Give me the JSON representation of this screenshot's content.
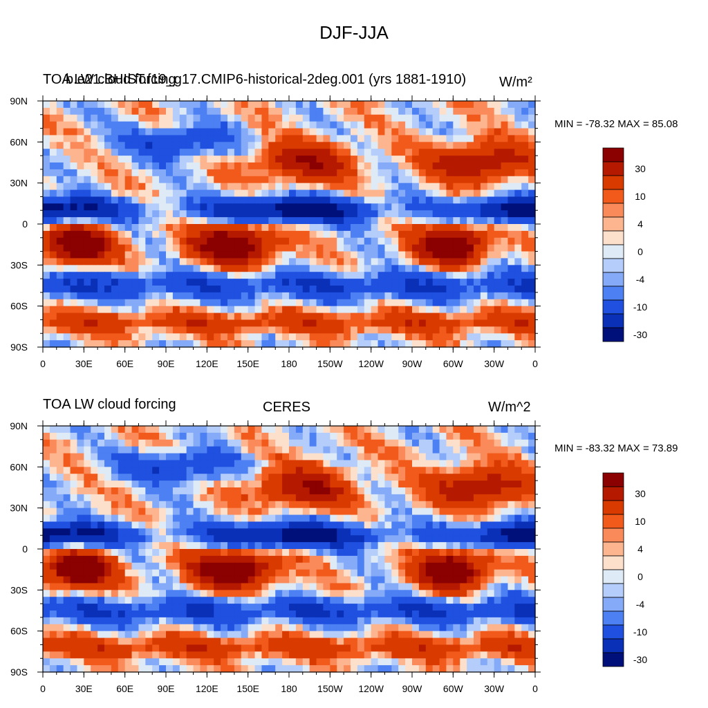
{
  "main_title": "DJF-JJA",
  "chart_data": [
    {
      "type": "heatmap",
      "left_title": "TOA LW cloud forcing",
      "center_title": "b.e21.BHIST.f19_g17.CMIP6-historical-2deg.001 (yrs 1881-1910)",
      "units": "W/m²",
      "stats": "MIN = -78.32 MAX =  85.08",
      "x_tick_labels": [
        "0",
        "30E",
        "60E",
        "90E",
        "120E",
        "150E",
        "180",
        "150W",
        "120W",
        "90W",
        "60W",
        "30W",
        "0"
      ],
      "y_tick_labels": [
        "90N",
        "60N",
        "30N",
        "0",
        "30S",
        "60S",
        "90S"
      ],
      "colorbar_levels": [
        "30",
        "10",
        "4",
        "0",
        "-4",
        "-10",
        "-30"
      ],
      "colorbar_colors": [
        "#8b0000",
        "#b51a00",
        "#d93a00",
        "#f15a1a",
        "#fb8a5a",
        "#fdb58f",
        "#fde0cc",
        "#deebf7",
        "#b4cdfa",
        "#84aaf8",
        "#4d80f2",
        "#1f50e0",
        "#0a30b8",
        "#00107a"
      ],
      "seed": 11
    },
    {
      "type": "heatmap",
      "left_title": "TOA LW cloud forcing",
      "center_title": "CERES",
      "units": "W/m^2",
      "stats": "MIN = -83.32 MAX =  73.89",
      "x_tick_labels": [
        "0",
        "30E",
        "60E",
        "90E",
        "120E",
        "150E",
        "180",
        "150W",
        "120W",
        "90W",
        "60W",
        "30W",
        "0"
      ],
      "y_tick_labels": [
        "90N",
        "60N",
        "30N",
        "0",
        "30S",
        "60S",
        "90S"
      ],
      "colorbar_levels": [
        "30",
        "10",
        "4",
        "0",
        "-4",
        "-10",
        "-30"
      ],
      "colorbar_colors": [
        "#8b0000",
        "#b51a00",
        "#d93a00",
        "#f15a1a",
        "#fb8a5a",
        "#fdb58f",
        "#fde0cc",
        "#deebf7",
        "#b4cdfa",
        "#84aaf8",
        "#4d80f2",
        "#1f50e0",
        "#0a30b8",
        "#00107a"
      ],
      "seed": 23
    }
  ]
}
